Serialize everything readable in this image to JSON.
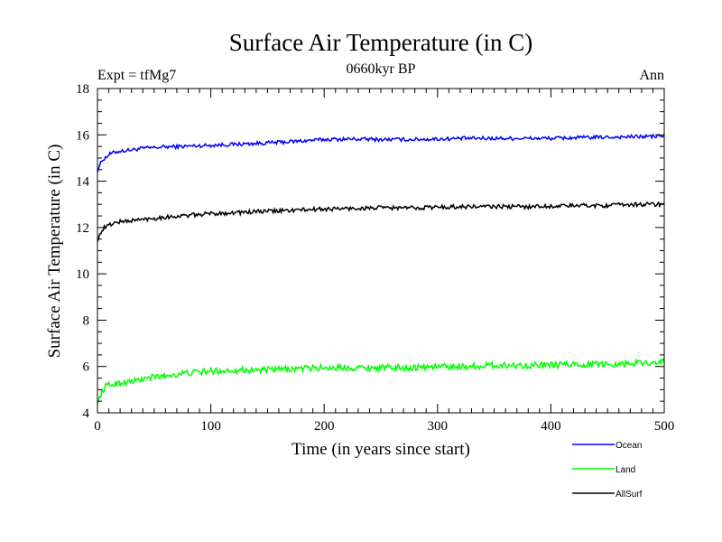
{
  "chart_data": {
    "type": "line",
    "title": "Surface Air Temperature (in C)",
    "subtitle": "0660kyr BP",
    "expt_label": "Expt = tfMg7",
    "period_label": "Ann",
    "xlabel": "Time (in years since start)",
    "ylabel": "Surface Air Temperature (in C)",
    "xlim": [
      0,
      500
    ],
    "ylim": [
      4,
      18
    ],
    "xticks": [
      0,
      100,
      200,
      300,
      400,
      500
    ],
    "xtick_labels": [
      "0",
      "100",
      "200",
      "300",
      "400",
      "500"
    ],
    "yticks": [
      4,
      6,
      8,
      10,
      12,
      14,
      16,
      18
    ],
    "ytick_labels": [
      "4",
      "6",
      "8",
      "10",
      "12",
      "14",
      "16",
      "18"
    ],
    "legend_position": "bottom-right, below plot",
    "grid": false,
    "series": [
      {
        "name": "Ocean",
        "color": "#0000ff",
        "x": [
          0,
          2,
          5,
          8,
          10,
          15,
          20,
          30,
          40,
          50,
          60,
          75,
          100,
          125,
          150,
          175,
          200,
          225,
          250,
          275,
          300,
          325,
          350,
          375,
          400,
          425,
          450,
          475,
          500
        ],
        "values": [
          14.4,
          14.7,
          14.95,
          15.05,
          15.15,
          15.25,
          15.3,
          15.35,
          15.42,
          15.45,
          15.48,
          15.5,
          15.55,
          15.6,
          15.65,
          15.72,
          15.8,
          15.82,
          15.8,
          15.8,
          15.82,
          15.85,
          15.85,
          15.85,
          15.85,
          15.88,
          15.9,
          15.92,
          15.95
        ],
        "noise": 0.08
      },
      {
        "name": "Land",
        "color": "#00ff00",
        "x": [
          0,
          2,
          5,
          8,
          10,
          15,
          20,
          30,
          40,
          50,
          60,
          75,
          100,
          125,
          150,
          175,
          200,
          225,
          250,
          275,
          300,
          325,
          350,
          375,
          400,
          425,
          450,
          475,
          500
        ],
        "values": [
          4.4,
          4.7,
          5.0,
          5.15,
          5.2,
          5.25,
          5.3,
          5.35,
          5.45,
          5.55,
          5.6,
          5.7,
          5.8,
          5.85,
          5.85,
          5.9,
          5.95,
          5.95,
          5.95,
          5.95,
          6.0,
          6.0,
          6.05,
          6.05,
          6.05,
          6.1,
          6.1,
          6.15,
          6.2
        ],
        "noise": 0.14
      },
      {
        "name": "AllSurf",
        "color": "#000000",
        "x": [
          0,
          2,
          5,
          8,
          10,
          15,
          20,
          30,
          40,
          50,
          60,
          75,
          100,
          125,
          150,
          175,
          200,
          225,
          250,
          275,
          300,
          325,
          350,
          375,
          400,
          425,
          450,
          475,
          500
        ],
        "values": [
          11.4,
          11.7,
          11.95,
          12.05,
          12.1,
          12.2,
          12.25,
          12.3,
          12.35,
          12.4,
          12.45,
          12.5,
          12.6,
          12.65,
          12.7,
          12.75,
          12.8,
          12.82,
          12.85,
          12.85,
          12.88,
          12.9,
          12.9,
          12.9,
          12.92,
          12.95,
          12.95,
          13.0,
          13.0
        ],
        "noise": 0.09
      }
    ]
  }
}
